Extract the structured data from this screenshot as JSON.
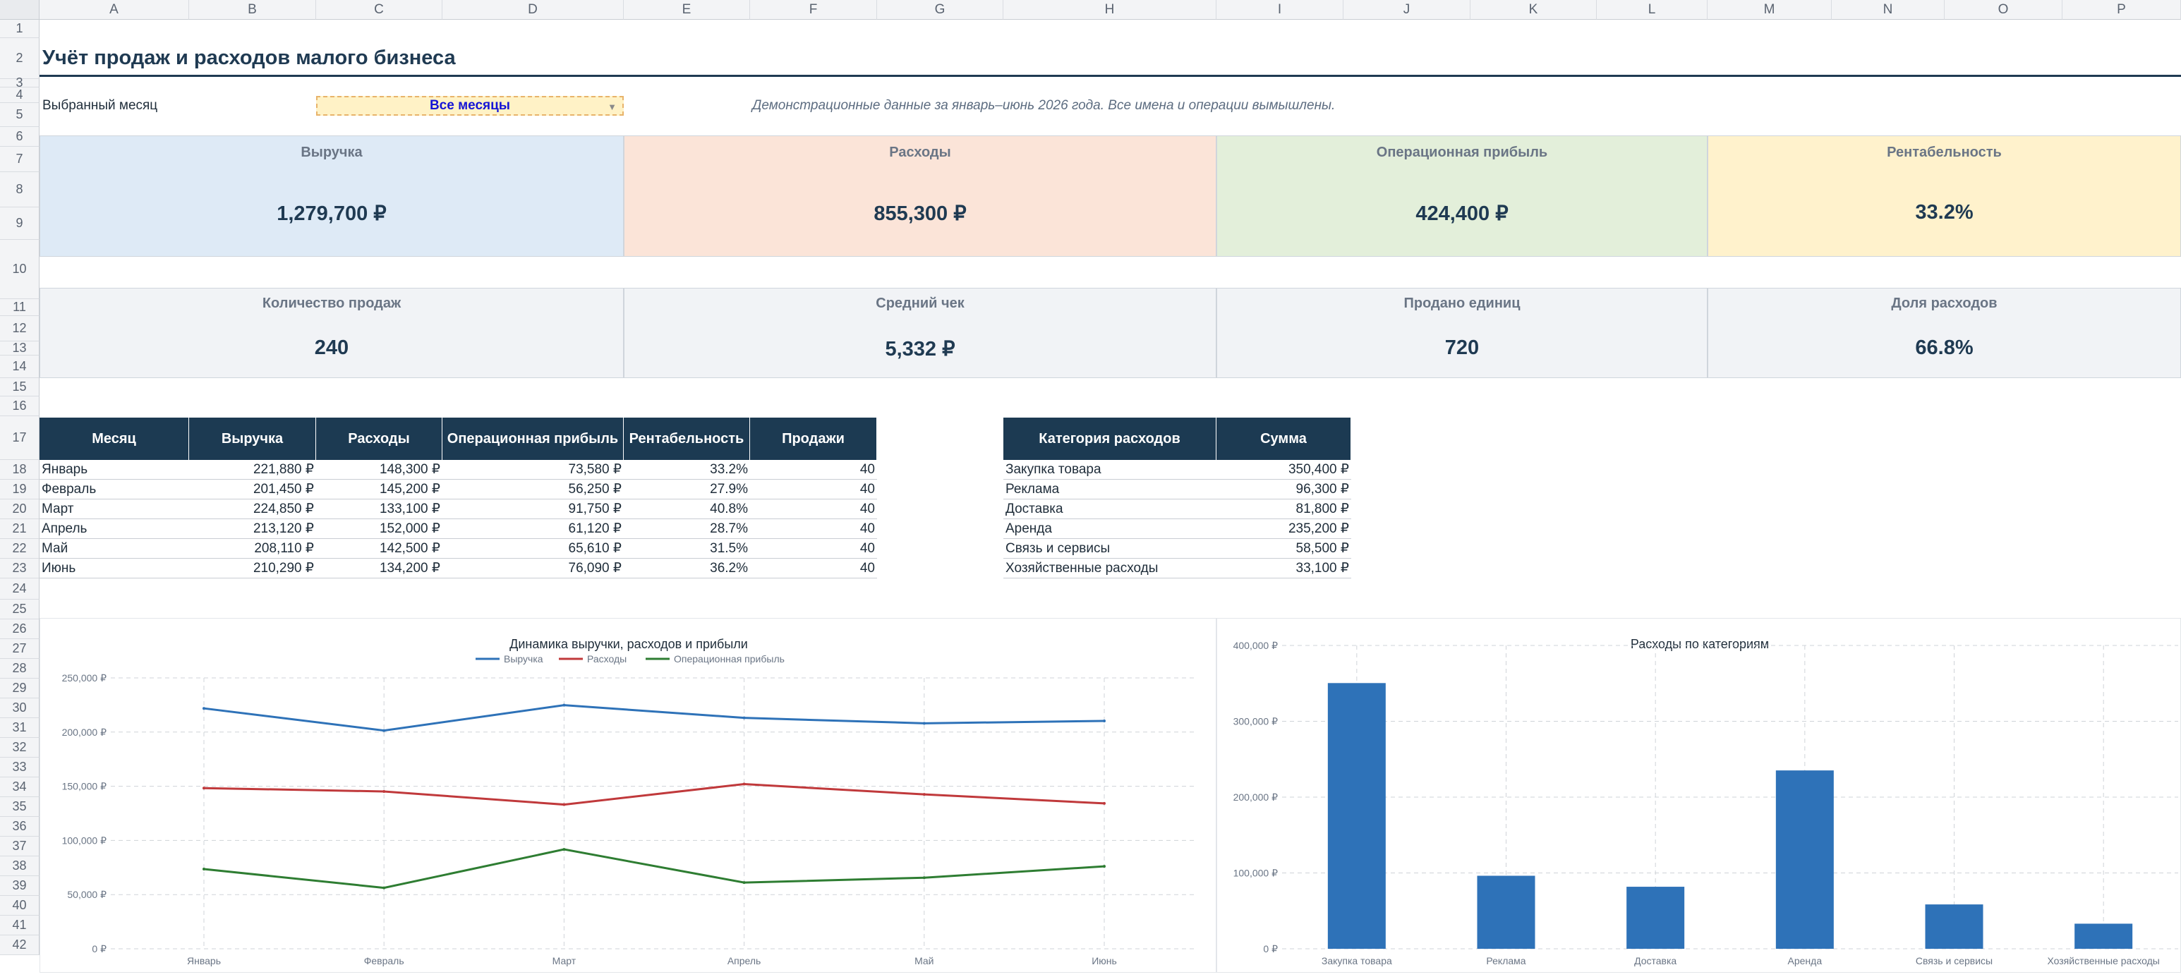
{
  "sheet": {
    "columns": [
      "A",
      "B",
      "C",
      "D",
      "E",
      "F",
      "G",
      "H",
      "I",
      "J",
      "K",
      "L",
      "M",
      "N",
      "O",
      "P"
    ],
    "rows": [
      "1",
      "2",
      "3",
      "4",
      "5",
      "6",
      "7",
      "8",
      "9",
      "10",
      "11",
      "12",
      "13",
      "14",
      "15",
      "16",
      "17",
      "18",
      "19",
      "20",
      "21",
      "22",
      "23",
      "24",
      "25",
      "26",
      "27",
      "28",
      "29",
      "30",
      "31",
      "32",
      "33",
      "34",
      "35",
      "36",
      "37",
      "38",
      "39",
      "40",
      "41",
      "42"
    ]
  },
  "title": "Учёт продаж и расходов малого бизнеса",
  "filter": {
    "label": "Выбранный месяц",
    "value": "Все месяцы",
    "note": "Демонстрационные данные за январь–июнь 2026 года. Все имена и операции вымышлены."
  },
  "kpis_top": [
    {
      "label": "Выручка",
      "value": "1,279,700 ₽",
      "bg": "#deeaf6"
    },
    {
      "label": "Расходы",
      "value": "855,300 ₽",
      "bg": "#fbe4d8"
    },
    {
      "label": "Операционная прибыль",
      "value": "424,400 ₽",
      "bg": "#e3efda"
    },
    {
      "label": "Рентабельность",
      "value": "33.2%",
      "bg": "#fff2cc"
    }
  ],
  "kpis_bottom": [
    {
      "label": "Количество продаж",
      "value": "240",
      "bg": "#f1f3f6"
    },
    {
      "label": "Средний чек",
      "value": "5,332 ₽",
      "bg": "#f1f3f6"
    },
    {
      "label": "Продано единиц",
      "value": "720",
      "bg": "#f1f3f6"
    },
    {
      "label": "Доля расходов",
      "value": "66.8%",
      "bg": "#f1f3f6"
    }
  ],
  "monthly_table": {
    "headers": [
      "Месяц",
      "Выручка",
      "Расходы",
      "Операционная прибыль",
      "Рентабельность",
      "Продажи"
    ],
    "rows": [
      [
        "Январь",
        "221,880 ₽",
        "148,300 ₽",
        "73,580 ₽",
        "33.2%",
        "40"
      ],
      [
        "Февраль",
        "201,450 ₽",
        "145,200 ₽",
        "56,250 ₽",
        "27.9%",
        "40"
      ],
      [
        "Март",
        "224,850 ₽",
        "133,100 ₽",
        "91,750 ₽",
        "40.8%",
        "40"
      ],
      [
        "Апрель",
        "213,120 ₽",
        "152,000 ₽",
        "61,120 ₽",
        "28.7%",
        "40"
      ],
      [
        "Май",
        "208,110 ₽",
        "142,500 ₽",
        "65,610 ₽",
        "31.5%",
        "40"
      ],
      [
        "Июнь",
        "210,290 ₽",
        "134,200 ₽",
        "76,090 ₽",
        "36.2%",
        "40"
      ]
    ]
  },
  "expense_table": {
    "headers": [
      "Категория расходов",
      "Сумма"
    ],
    "rows": [
      [
        "Закупка товара",
        "350,400 ₽"
      ],
      [
        "Реклама",
        "96,300 ₽"
      ],
      [
        "Доставка",
        "81,800 ₽"
      ],
      [
        "Аренда",
        "235,200 ₽"
      ],
      [
        "Связь и сервисы",
        "58,500 ₽"
      ],
      [
        "Хозяйственные расходы",
        "33,100 ₽"
      ]
    ]
  },
  "chart_data": [
    {
      "type": "line",
      "title": "Динамика выручки, расходов и прибыли",
      "categories": [
        "Январь",
        "Февраль",
        "Март",
        "Апрель",
        "Май",
        "Июнь"
      ],
      "series": [
        {
          "name": "Выручка",
          "color": "#2e72b8",
          "values": [
            221880,
            201450,
            224850,
            213120,
            208110,
            210290
          ]
        },
        {
          "name": "Расходы",
          "color": "#c0393b",
          "values": [
            148300,
            145200,
            133100,
            152000,
            142500,
            134200
          ]
        },
        {
          "name": "Операционная прибыль",
          "color": "#2e7d32",
          "values": [
            73580,
            56250,
            91750,
            61120,
            65610,
            76090
          ]
        }
      ],
      "ylim": [
        0,
        250000
      ],
      "yticks": [
        "0 ₽",
        "50,000 ₽",
        "100,000 ₽",
        "150,000 ₽",
        "200,000 ₽",
        "250,000 ₽"
      ],
      "grid": true,
      "legend": "top"
    },
    {
      "type": "bar",
      "title": "Расходы по категориям",
      "categories": [
        "Закупка товара",
        "Реклама",
        "Доставка",
        "Аренда",
        "Связь и сервисы",
        "Хозяйственные расходы"
      ],
      "values": [
        350400,
        96300,
        81800,
        235200,
        58500,
        33100
      ],
      "color": "#2e72b8",
      "ylim": [
        0,
        400000
      ],
      "yticks": [
        "0 ₽",
        "100,000 ₽",
        "200,000 ₽",
        "300,000 ₽",
        "400,000 ₽"
      ],
      "grid": true
    }
  ]
}
